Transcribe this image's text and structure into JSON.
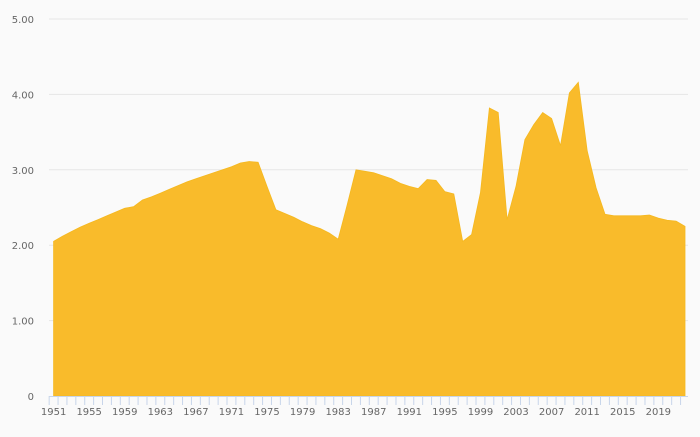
{
  "chart_data": {
    "type": "area",
    "title": "",
    "xlabel": "",
    "ylabel": "",
    "ylim": [
      0,
      5
    ],
    "yticks": [
      "0",
      "1.00",
      "2.00",
      "3.00",
      "4.00",
      "5.00"
    ],
    "grid": true,
    "legend": "none",
    "x_label_step": 4,
    "colors": {
      "fill": "#f9bb2b",
      "grid": "#e6e6e6",
      "axis": "#c8d5ea",
      "background": "#fafafa"
    },
    "x": [
      1951,
      1952,
      1953,
      1954,
      1955,
      1956,
      1957,
      1958,
      1959,
      1960,
      1961,
      1962,
      1963,
      1964,
      1965,
      1966,
      1967,
      1968,
      1969,
      1970,
      1971,
      1972,
      1973,
      1974,
      1975,
      1976,
      1977,
      1978,
      1979,
      1980,
      1981,
      1982,
      1983,
      1984,
      1985,
      1986,
      1987,
      1988,
      1989,
      1990,
      1991,
      1992,
      1993,
      1994,
      1995,
      1996,
      1997,
      1998,
      1999,
      2000,
      2001,
      2002,
      2003,
      2004,
      2005,
      2006,
      2007,
      2008,
      2009,
      2010,
      2011,
      2012,
      2013,
      2014,
      2015,
      2016,
      2017,
      2018,
      2019,
      2020,
      2021,
      2022
    ],
    "values": [
      2.05,
      2.12,
      2.18,
      2.24,
      2.29,
      2.34,
      2.39,
      2.44,
      2.49,
      2.51,
      2.6,
      2.64,
      2.69,
      2.74,
      2.79,
      2.84,
      2.88,
      2.92,
      2.96,
      3.0,
      3.04,
      3.09,
      3.11,
      3.1,
      2.78,
      2.47,
      2.42,
      2.37,
      2.31,
      2.26,
      2.22,
      2.16,
      2.08,
      2.53,
      3.0,
      2.98,
      2.96,
      2.92,
      2.88,
      2.82,
      2.78,
      2.75,
      2.87,
      2.86,
      2.71,
      2.68,
      2.05,
      2.14,
      2.7,
      3.82,
      3.76,
      2.34,
      2.78,
      3.4,
      3.6,
      3.76,
      3.68,
      3.32,
      4.02,
      4.16,
      3.25,
      2.76,
      2.41,
      2.39,
      2.39,
      2.39,
      2.39,
      2.4,
      2.36,
      2.33,
      2.32,
      2.25
    ]
  }
}
